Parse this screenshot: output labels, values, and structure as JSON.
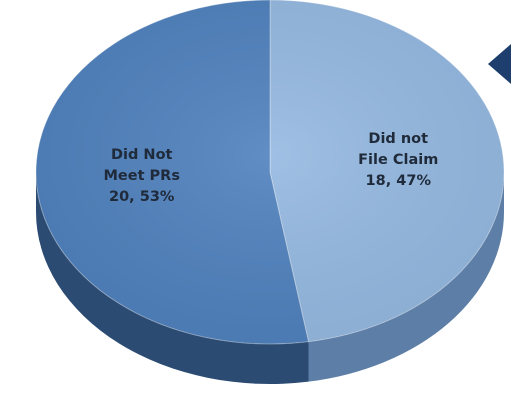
{
  "chart_data": {
    "type": "pie",
    "style": "3d",
    "title": "",
    "slices": [
      {
        "label_lines": [
          "Did not",
          "File Claim",
          "18, 47%"
        ],
        "value": 18,
        "percent": 47,
        "color": "#95b9e1",
        "side_color": "#5d7ea6"
      },
      {
        "label_lines": [
          "Did Not",
          "Meet PRs",
          "20, 53%"
        ],
        "value": 20,
        "percent": 53,
        "color": "#4f81bd",
        "side_color": "#2c4b73"
      }
    ],
    "start_direction": "top, clockwise",
    "legend": "none"
  },
  "decoration": {
    "arrow_color": "#1e3f6e",
    "arrow_direction": "left"
  }
}
